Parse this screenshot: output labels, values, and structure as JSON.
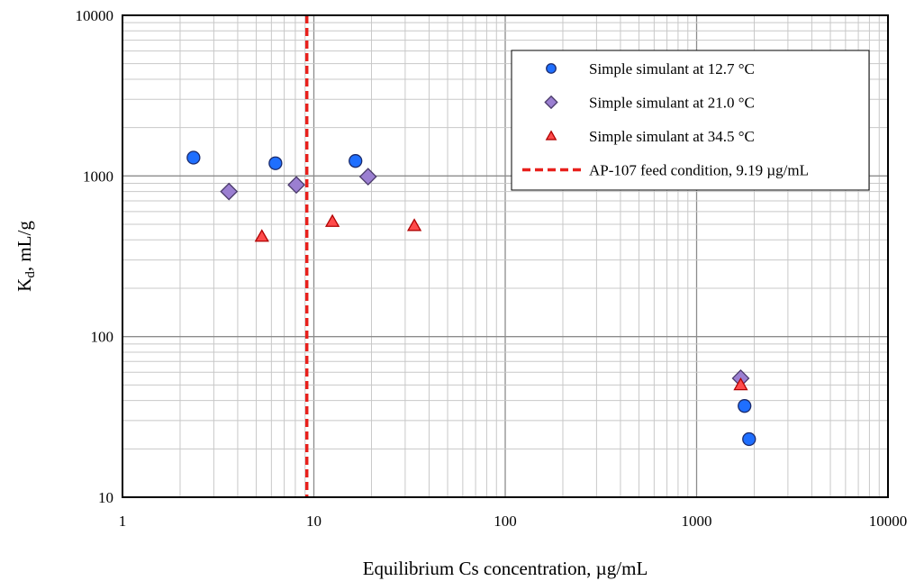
{
  "chart_data": {
    "type": "scatter",
    "title": "",
    "xlabel": "Equilibrium Cs concentration, µg/mL",
    "ylabel": {
      "main": "K",
      "sub": "d",
      "rest": ", mL/g"
    },
    "x_scale": "log",
    "y_scale": "log",
    "xlim": [
      1,
      10000
    ],
    "ylim": [
      10,
      10000
    ],
    "x_ticks": [
      1,
      10,
      100,
      1000,
      10000
    ],
    "y_ticks": [
      10,
      100,
      1000,
      10000
    ],
    "x_tick_labels": [
      "1",
      "10",
      "100",
      "1000",
      "10000"
    ],
    "y_tick_labels": [
      "10",
      "100",
      "1000",
      "10000"
    ],
    "grid": "major and minor",
    "legend_position": "top-right",
    "series": [
      {
        "name": "Simple simulant at 12.7 °C",
        "marker": "circle",
        "color": "#1f6fff",
        "x": [
          2.35,
          6.3,
          16.5,
          1780,
          1880
        ],
        "y": [
          1300,
          1200,
          1240,
          37,
          23
        ]
      },
      {
        "name": "Simple simulant at 21.0 °C",
        "marker": "diamond",
        "color": "#9b7fd1",
        "x": [
          3.6,
          8.1,
          19.2,
          1700
        ],
        "y": [
          800,
          880,
          990,
          55
        ]
      },
      {
        "name": "Simple simulant at 34.5 °C",
        "marker": "triangle",
        "color": "#ff4b4b",
        "x": [
          5.35,
          12.5,
          33.5,
          1700
        ],
        "y": [
          420,
          520,
          490,
          50
        ]
      }
    ],
    "reference_lines": [
      {
        "name": "AP-107 feed condition, 9.19 µg/mL",
        "orientation": "vertical",
        "x": 9.19,
        "style": "dashed",
        "color": "#e8201c"
      }
    ]
  }
}
